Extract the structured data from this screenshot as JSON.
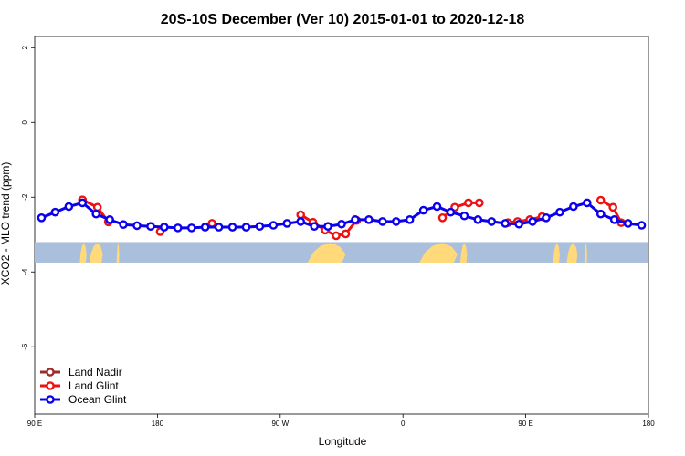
{
  "chart_data": {
    "type": "line",
    "title": "20S-10S December (Ver 10)   2015-01-01 to 2020-12-18",
    "xlabel": "Longitude",
    "ylabel": "XCO2 - MLO trend (ppm)",
    "x_ticks": [
      {
        "value": 90,
        "label": "90 E"
      },
      {
        "value": 180,
        "label": "180"
      },
      {
        "value": 270,
        "label": "90 W"
      },
      {
        "value": 360,
        "label": "0"
      },
      {
        "value": 450,
        "label": "90 E"
      },
      {
        "value": 540,
        "label": "180"
      }
    ],
    "y_ticks": [
      {
        "value": 2,
        "label": "2"
      },
      {
        "value": 0,
        "label": "0"
      },
      {
        "value": -2,
        "label": "-2"
      },
      {
        "value": -4,
        "label": "-4"
      },
      {
        "value": -6,
        "label": "-6"
      }
    ],
    "xlim": [
      90,
      540
    ],
    "ylim": [
      -7.8,
      2.3
    ],
    "legend_position": "bottom-left",
    "land_band": {
      "y_top": -3.2,
      "y_bottom": -3.75,
      "ocean_color": "#a9bfdc",
      "land_color": "#ffd97a"
    },
    "land_segments": [
      [
        123,
        128
      ],
      [
        130,
        140
      ],
      [
        150,
        152
      ],
      [
        290,
        318
      ],
      [
        304,
        314
      ],
      [
        372,
        400
      ],
      [
        402,
        407
      ],
      [
        470,
        475
      ],
      [
        480,
        488
      ],
      [
        493,
        495
      ]
    ],
    "series": [
      {
        "name": "Land Nadir",
        "color": "#9b2d2d",
        "x": [
          125,
          134,
          136,
          279,
          283,
          289,
          295,
          303,
          360,
          370,
          382,
          391,
          404,
          412,
          415,
          425,
          434,
          440,
          447,
          505,
          514,
          517,
          521
        ],
        "y": [
          -2.08,
          -2.3,
          -2.65,
          -2.55,
          -2.7,
          -2.92,
          -2.98,
          -2.62,
          -2.45,
          -2.38,
          -2.2,
          -2.12,
          -2.42,
          -2.65,
          -2.68,
          -2.65,
          -2.6,
          -2.55,
          -2.35,
          -2.12,
          -2.25,
          -2.45,
          -2.6
        ]
      },
      {
        "name": "Land Glint",
        "color": "#ee1111",
        "x": [
          125,
          136,
          144,
          182,
          220,
          285,
          294,
          303,
          311,
          318,
          326,
          389,
          398,
          408,
          416,
          437,
          444,
          453,
          462,
          505,
          514,
          520
        ],
        "y": [
          -2.07,
          -2.27,
          -2.66,
          -2.92,
          -2.7,
          -2.47,
          -2.67,
          -2.88,
          -3.03,
          -2.98,
          -2.62,
          -2.55,
          -2.27,
          -2.15,
          -2.15,
          -2.68,
          -2.65,
          -2.6,
          -2.52,
          -2.08,
          -2.27,
          -2.68
        ]
      },
      {
        "name": "Ocean Glint",
        "color": "#0a00ee",
        "x": [
          95,
          105,
          115,
          125,
          135,
          145,
          155,
          165,
          175,
          185,
          195,
          205,
          215,
          225,
          235,
          245,
          255,
          265,
          275,
          285,
          295,
          305,
          315,
          325,
          335,
          345,
          355,
          365,
          375,
          385,
          395,
          405,
          415,
          425,
          435,
          445,
          455,
          465,
          475,
          485,
          495,
          505,
          515,
          525,
          535
        ],
        "y": [
          -2.55,
          -2.4,
          -2.25,
          -2.15,
          -2.45,
          -2.6,
          -2.73,
          -2.76,
          -2.78,
          -2.8,
          -2.82,
          -2.82,
          -2.8,
          -2.8,
          -2.8,
          -2.8,
          -2.78,
          -2.75,
          -2.7,
          -2.65,
          -2.78,
          -2.78,
          -2.72,
          -2.6,
          -2.6,
          -2.65,
          -2.65,
          -2.6,
          -2.35,
          -2.25,
          -2.4,
          -2.5,
          -2.6,
          -2.65,
          -2.7,
          -2.72,
          -2.65,
          -2.55,
          -2.4,
          -2.25,
          -2.15,
          -2.45,
          -2.6,
          -2.7,
          -2.75
        ]
      }
    ]
  }
}
